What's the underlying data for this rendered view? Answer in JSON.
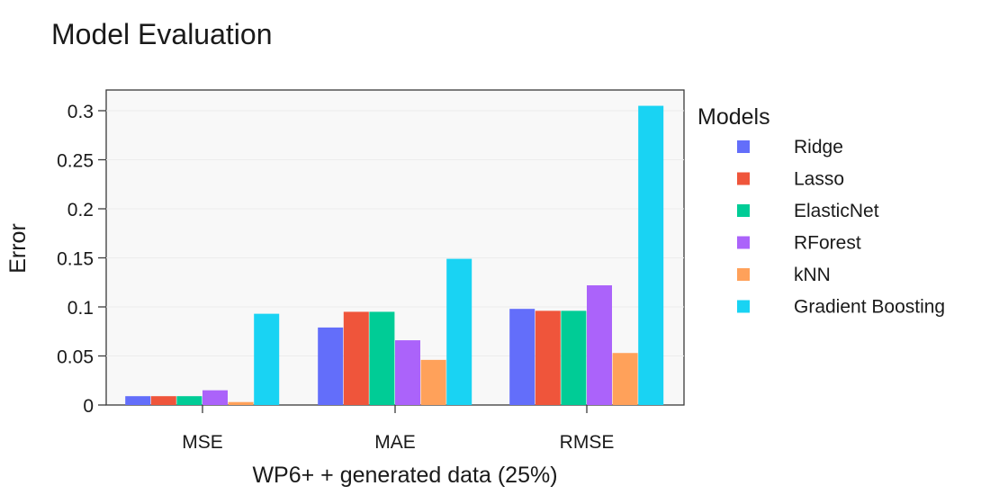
{
  "chart_data": {
    "type": "bar",
    "title": "Model Evaluation",
    "xlabel": "WP6+ + generated data (25%)",
    "ylabel": "Error",
    "categories": [
      "MSE",
      "MAE",
      "RMSE"
    ],
    "ylim": [
      0,
      0.32
    ],
    "yticks": [
      0,
      0.05,
      0.1,
      0.15,
      0.2,
      0.25,
      0.3
    ],
    "ytick_labels": [
      "0",
      "0.05",
      "0.1",
      "0.15",
      "0.2",
      "0.25",
      "0.3"
    ],
    "grid": true,
    "legend": {
      "title": "Models",
      "position": "right"
    },
    "series": [
      {
        "name": "Ridge",
        "color": "#636EFA",
        "values": [
          0.009,
          0.079,
          0.098
        ]
      },
      {
        "name": "Lasso",
        "color": "#EF553B",
        "values": [
          0.009,
          0.095,
          0.096
        ]
      },
      {
        "name": "ElasticNet",
        "color": "#00CC96",
        "values": [
          0.009,
          0.095,
          0.096
        ]
      },
      {
        "name": "RForest",
        "color": "#AB63FA",
        "values": [
          0.015,
          0.066,
          0.122
        ]
      },
      {
        "name": "kNN",
        "color": "#FFA15A",
        "values": [
          0.003,
          0.046,
          0.053
        ]
      },
      {
        "name": "Gradient Boosting",
        "color": "#19D3F3",
        "values": [
          0.093,
          0.149,
          0.305
        ]
      }
    ]
  }
}
